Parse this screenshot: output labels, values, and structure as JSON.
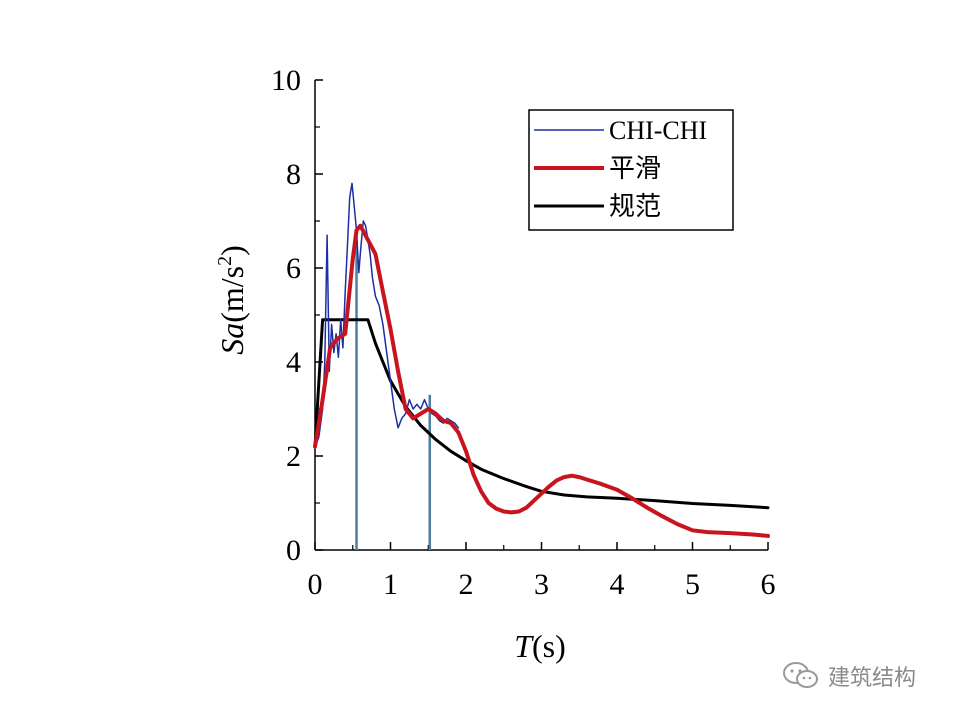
{
  "chart_data": {
    "type": "line",
    "xlabel": "T(s)",
    "xlabel_italic": "T",
    "xlabel_rest": "(s)",
    "ylabel_italic": "Sa",
    "ylabel_rest": "(m/s",
    "ylabel_sup": "2",
    "ylabel_close": ")",
    "xlim": [
      0,
      6
    ],
    "ylim": [
      0,
      10
    ],
    "xticks": [
      "0",
      "1",
      "2",
      "3",
      "4",
      "5",
      "6"
    ],
    "yticks": [
      "0",
      "2",
      "4",
      "6",
      "8",
      "10"
    ],
    "grid": false,
    "legend_position": "top-right",
    "series": [
      {
        "name": "CHI-CHI",
        "color": "#1c2fa3",
        "x": [
          0.0,
          0.05,
          0.1,
          0.13,
          0.16,
          0.19,
          0.22,
          0.25,
          0.28,
          0.31,
          0.34,
          0.37,
          0.4,
          0.43,
          0.46,
          0.49,
          0.52,
          0.55,
          0.58,
          0.61,
          0.64,
          0.67,
          0.7,
          0.73,
          0.76,
          0.8,
          0.85,
          0.9,
          0.95,
          1.0,
          1.05,
          1.1,
          1.15,
          1.2,
          1.25,
          1.3,
          1.35,
          1.4,
          1.45,
          1.5,
          1.55,
          1.6,
          1.65,
          1.7,
          1.75,
          1.8,
          1.85,
          1.9
        ],
        "y": [
          2.2,
          2.4,
          3.0,
          4.0,
          6.7,
          3.8,
          4.8,
          4.2,
          4.6,
          4.1,
          4.9,
          4.3,
          5.5,
          6.5,
          7.5,
          7.8,
          7.3,
          6.8,
          5.9,
          6.5,
          7.0,
          6.9,
          6.6,
          6.3,
          5.8,
          5.4,
          5.2,
          4.8,
          4.2,
          3.6,
          3.0,
          2.6,
          2.8,
          2.9,
          3.2,
          3.0,
          3.1,
          3.0,
          3.2,
          3.0,
          2.9,
          2.85,
          2.75,
          2.7,
          2.8,
          2.75,
          2.7,
          2.6
        ]
      },
      {
        "name": "平滑",
        "color": "#c8141e",
        "x": [
          0.0,
          0.1,
          0.2,
          0.3,
          0.4,
          0.5,
          0.55,
          0.6,
          0.7,
          0.8,
          0.9,
          1.0,
          1.1,
          1.2,
          1.3,
          1.4,
          1.5,
          1.6,
          1.7,
          1.8,
          1.9,
          2.0,
          2.1,
          2.2,
          2.3,
          2.4,
          2.5,
          2.6,
          2.7,
          2.8,
          2.9,
          3.0,
          3.1,
          3.2,
          3.3,
          3.4,
          3.5,
          3.6,
          3.8,
          4.0,
          4.2,
          4.4,
          4.6,
          4.8,
          5.0,
          5.2,
          5.5,
          5.8,
          6.0
        ],
        "y": [
          2.2,
          3.2,
          4.3,
          4.5,
          4.6,
          6.2,
          6.8,
          6.9,
          6.6,
          6.3,
          5.5,
          4.7,
          3.8,
          3.0,
          2.8,
          2.9,
          3.0,
          2.9,
          2.75,
          2.7,
          2.5,
          2.1,
          1.6,
          1.25,
          1.0,
          0.88,
          0.82,
          0.8,
          0.82,
          0.9,
          1.05,
          1.2,
          1.35,
          1.48,
          1.55,
          1.58,
          1.55,
          1.5,
          1.4,
          1.28,
          1.1,
          0.9,
          0.72,
          0.55,
          0.42,
          0.38,
          0.36,
          0.33,
          0.3
        ]
      },
      {
        "name": "规范",
        "color": "#000000",
        "x": [
          0.0,
          0.1,
          0.15,
          0.3,
          0.5,
          0.7,
          0.8,
          0.9,
          1.0,
          1.2,
          1.4,
          1.6,
          1.8,
          2.0,
          2.2,
          2.5,
          2.8,
          3.0,
          3.3,
          3.6,
          4.0,
          4.5,
          5.0,
          5.5,
          6.0
        ],
        "y": [
          2.2,
          4.9,
          4.9,
          4.9,
          4.9,
          4.9,
          4.4,
          4.0,
          3.6,
          3.05,
          2.65,
          2.35,
          2.1,
          1.9,
          1.72,
          1.52,
          1.35,
          1.25,
          1.17,
          1.13,
          1.1,
          1.05,
          0.99,
          0.95,
          0.9
        ]
      }
    ],
    "vertical_markers": [
      {
        "x": 0.55,
        "y_top": 6.8,
        "color": "#4f7ea0"
      },
      {
        "x": 1.52,
        "y_top": 3.3,
        "color": "#4f7ea0"
      }
    ]
  },
  "watermark": {
    "text": "建筑结构",
    "icon": "wechat-icon"
  }
}
